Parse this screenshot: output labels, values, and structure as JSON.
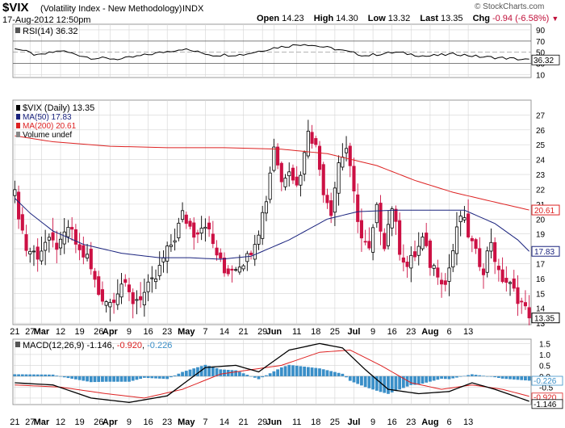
{
  "header": {
    "symbol": "$VIX",
    "description": "(Volatility Index - New Methodology)",
    "exchange": "INDX",
    "date": "17-Aug-2012 12:50pm",
    "brand": "© StockCharts.com",
    "open_label": "Open",
    "open": "14.23",
    "high_label": "High",
    "high": "14.30",
    "low_label": "Low",
    "low": "13.32",
    "last_label": "Last",
    "last": "13.35",
    "chg_label": "Chg",
    "chg": "-0.94 (-6.58%)",
    "chg_arrow": "▼"
  },
  "colors": {
    "up": "#000000",
    "down": "#cc1144",
    "ma50": "#1a237e",
    "ma200": "#dd2222",
    "hist": "#3a8fc8",
    "grid": "#d4d4d4"
  },
  "rsi_panel": {
    "label": "RSI(14) 36.32",
    "ticks": [
      "90",
      "70",
      "50",
      "30",
      "10"
    ],
    "value_badge": "36.32"
  },
  "price_panel": {
    "legend": [
      "$VIX (Daily) 13.35",
      "MA(50) 17.83",
      "MA(200) 20.61",
      "Volume undef"
    ],
    "ticks": [
      "27",
      "26",
      "25",
      "24",
      "23",
      "22",
      "21",
      "20",
      "19",
      "18",
      "17",
      "16",
      "15",
      "14",
      "13"
    ],
    "badges": {
      "ma200": "20.61",
      "ma50": "17.83",
      "last": "13.35"
    }
  },
  "macd_panel": {
    "label_prefix": "MACD(12,26,9)",
    "macd": "-1.146",
    "signal": "-0.920",
    "hist": "-0.226",
    "ticks": [
      "1.5",
      "1.0",
      "0.5",
      "0.0",
      "-0.5",
      "-1.0"
    ],
    "badges": [
      "-0.226",
      "-0.920",
      "-1.146"
    ]
  },
  "x_axis": {
    "labels": [
      "21",
      "27",
      "Mar",
      "12",
      "19",
      "26",
      "Apr",
      "9",
      "16",
      "23",
      "May",
      "7",
      "14",
      "21",
      "29",
      "Jun",
      "11",
      "18",
      "25",
      "Jul",
      "9",
      "16",
      "23",
      "Aug",
      "6",
      "13"
    ],
    "bold": [
      "Mar",
      "Apr",
      "May",
      "Jun",
      "Jul",
      "Aug"
    ]
  },
  "chart_data": {
    "type": "candlestick",
    "title": "$VIX (Volatility Index - New Methodology) INDX",
    "price_range": [
      12.9,
      28
    ],
    "last": 13.35,
    "ma50_last": 17.83,
    "ma200_last": 20.61,
    "close_anchors": [
      {
        "d": 0,
        "c": 21.6
      },
      {
        "d": 3,
        "c": 18.0
      },
      {
        "d": 6,
        "c": 17.6
      },
      {
        "d": 8,
        "c": 18.4
      },
      {
        "d": 12,
        "c": 18.2
      },
      {
        "d": 14,
        "c": 19.5
      },
      {
        "d": 17,
        "c": 17.8
      },
      {
        "d": 19,
        "c": 17.4
      },
      {
        "d": 22,
        "c": 15.0
      },
      {
        "d": 25,
        "c": 14.4
      },
      {
        "d": 28,
        "c": 15.7
      },
      {
        "d": 31,
        "c": 14.5
      },
      {
        "d": 34,
        "c": 15.0
      },
      {
        "d": 37,
        "c": 16.0
      },
      {
        "d": 39,
        "c": 17.3
      },
      {
        "d": 42,
        "c": 18.8
      },
      {
        "d": 44,
        "c": 20.3
      },
      {
        "d": 47,
        "c": 19.1
      },
      {
        "d": 50,
        "c": 19.8
      },
      {
        "d": 52,
        "c": 18.3
      },
      {
        "d": 55,
        "c": 16.4
      },
      {
        "d": 58,
        "c": 16.9
      },
      {
        "d": 61,
        "c": 17.4
      },
      {
        "d": 64,
        "c": 19.3
      },
      {
        "d": 66,
        "c": 21.4
      },
      {
        "d": 68,
        "c": 25.0
      },
      {
        "d": 70,
        "c": 22.5
      },
      {
        "d": 72,
        "c": 23.6
      },
      {
        "d": 74,
        "c": 22.2
      },
      {
        "d": 76,
        "c": 24.3
      },
      {
        "d": 77,
        "c": 26.2
      },
      {
        "d": 79,
        "c": 24.8
      },
      {
        "d": 81,
        "c": 22.0
      },
      {
        "d": 83,
        "c": 20.6
      },
      {
        "d": 85,
        "c": 23.8
      },
      {
        "d": 87,
        "c": 24.8
      },
      {
        "d": 89,
        "c": 21.6
      },
      {
        "d": 91,
        "c": 18.7
      },
      {
        "d": 93,
        "c": 17.8
      },
      {
        "d": 95,
        "c": 20.6
      },
      {
        "d": 97,
        "c": 18.4
      },
      {
        "d": 99,
        "c": 20.9
      },
      {
        "d": 101,
        "c": 18.0
      },
      {
        "d": 103,
        "c": 16.8
      },
      {
        "d": 105,
        "c": 17.6
      },
      {
        "d": 107,
        "c": 18.6
      },
      {
        "d": 109,
        "c": 17.0
      },
      {
        "d": 111,
        "c": 16.5
      },
      {
        "d": 113,
        "c": 15.6
      },
      {
        "d": 115,
        "c": 17.9
      },
      {
        "d": 117,
        "c": 20.3
      },
      {
        "d": 119,
        "c": 19.0
      },
      {
        "d": 121,
        "c": 17.6
      },
      {
        "d": 123,
        "c": 16.7
      },
      {
        "d": 125,
        "c": 18.6
      },
      {
        "d": 127,
        "c": 16.2
      },
      {
        "d": 129,
        "c": 15.8
      },
      {
        "d": 131,
        "c": 15.1
      },
      {
        "d": 133,
        "c": 14.4
      },
      {
        "d": 135,
        "c": 13.35
      }
    ],
    "ma50_anchors": [
      {
        "d": 0,
        "c": 21.4
      },
      {
        "d": 4,
        "c": 20.4
      },
      {
        "d": 10,
        "c": 19.2
      },
      {
        "d": 18,
        "c": 18.3
      },
      {
        "d": 28,
        "c": 17.7
      },
      {
        "d": 38,
        "c": 17.4
      },
      {
        "d": 46,
        "c": 17.4
      },
      {
        "d": 54,
        "c": 17.3
      },
      {
        "d": 62,
        "c": 17.5
      },
      {
        "d": 72,
        "c": 18.6
      },
      {
        "d": 82,
        "c": 20.0
      },
      {
        "d": 90,
        "c": 20.5
      },
      {
        "d": 100,
        "c": 20.6
      },
      {
        "d": 110,
        "c": 20.6
      },
      {
        "d": 118,
        "c": 20.6
      },
      {
        "d": 126,
        "c": 19.7
      },
      {
        "d": 132,
        "c": 18.6
      },
      {
        "d": 135,
        "c": 17.83
      }
    ],
    "ma200_anchors": [
      {
        "d": 0,
        "c": 25.6
      },
      {
        "d": 10,
        "c": 25.2
      },
      {
        "d": 25,
        "c": 24.9
      },
      {
        "d": 40,
        "c": 24.8
      },
      {
        "d": 55,
        "c": 24.8
      },
      {
        "d": 70,
        "c": 24.7
      },
      {
        "d": 82,
        "c": 24.4
      },
      {
        "d": 95,
        "c": 23.6
      },
      {
        "d": 105,
        "c": 22.6
      },
      {
        "d": 115,
        "c": 21.8
      },
      {
        "d": 125,
        "c": 21.2
      },
      {
        "d": 135,
        "c": 20.61
      }
    ],
    "rsi_anchors": [
      {
        "d": 0,
        "c": 58
      },
      {
        "d": 6,
        "c": 44
      },
      {
        "d": 12,
        "c": 53
      },
      {
        "d": 20,
        "c": 40
      },
      {
        "d": 28,
        "c": 38
      },
      {
        "d": 36,
        "c": 47
      },
      {
        "d": 44,
        "c": 56
      },
      {
        "d": 52,
        "c": 45
      },
      {
        "d": 60,
        "c": 46
      },
      {
        "d": 68,
        "c": 58
      },
      {
        "d": 76,
        "c": 65
      },
      {
        "d": 84,
        "c": 56
      },
      {
        "d": 92,
        "c": 44
      },
      {
        "d": 100,
        "c": 50
      },
      {
        "d": 108,
        "c": 43
      },
      {
        "d": 116,
        "c": 47
      },
      {
        "d": 122,
        "c": 42
      },
      {
        "d": 128,
        "c": 40
      },
      {
        "d": 135,
        "c": 36.32
      }
    ],
    "macd_anchors": [
      {
        "d": 0,
        "c": -0.3
      },
      {
        "d": 10,
        "c": -0.4
      },
      {
        "d": 20,
        "c": -1.0
      },
      {
        "d": 30,
        "c": -1.2
      },
      {
        "d": 40,
        "c": -0.9
      },
      {
        "d": 50,
        "c": 0.4
      },
      {
        "d": 58,
        "c": 0.5
      },
      {
        "d": 64,
        "c": 0.2
      },
      {
        "d": 72,
        "c": 1.2
      },
      {
        "d": 80,
        "c": 1.5
      },
      {
        "d": 86,
        "c": 1.3
      },
      {
        "d": 92,
        "c": 0.3
      },
      {
        "d": 98,
        "c": -0.6
      },
      {
        "d": 106,
        "c": -0.8
      },
      {
        "d": 114,
        "c": -0.7
      },
      {
        "d": 120,
        "c": -0.3
      },
      {
        "d": 126,
        "c": -0.6
      },
      {
        "d": 135,
        "c": -1.146
      }
    ],
    "signal_anchors": [
      {
        "d": 0,
        "c": -0.4
      },
      {
        "d": 12,
        "c": -0.5
      },
      {
        "d": 24,
        "c": -0.8
      },
      {
        "d": 34,
        "c": -1.0
      },
      {
        "d": 44,
        "c": -0.6
      },
      {
        "d": 54,
        "c": 0.1
      },
      {
        "d": 62,
        "c": 0.3
      },
      {
        "d": 70,
        "c": 0.5
      },
      {
        "d": 80,
        "c": 1.1
      },
      {
        "d": 88,
        "c": 1.2
      },
      {
        "d": 96,
        "c": 0.5
      },
      {
        "d": 104,
        "c": -0.3
      },
      {
        "d": 112,
        "c": -0.6
      },
      {
        "d": 120,
        "c": -0.4
      },
      {
        "d": 128,
        "c": -0.6
      },
      {
        "d": 135,
        "c": -0.92
      }
    ],
    "macd_range": [
      -1.3,
      1.7
    ]
  }
}
